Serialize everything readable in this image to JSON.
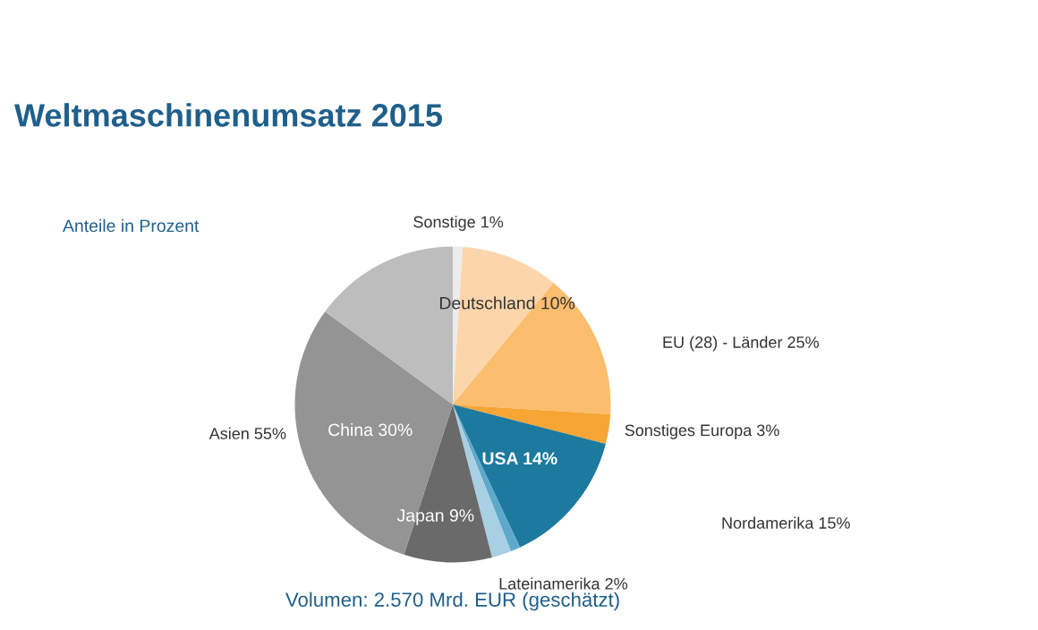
{
  "chart_data": {
    "type": "pie",
    "title": "Weltmaschinenumsatz 2015",
    "categories": [
      "Sonstige",
      "Deutschland",
      null,
      "Sonstiges Europa",
      "USA",
      null,
      "Lateinamerika",
      "Japan",
      "China",
      null
    ],
    "values": [
      1,
      10,
      15,
      3,
      14,
      1,
      2,
      9,
      30,
      15
    ],
    "value_labels": [
      "1%",
      "10%",
      null,
      "3%",
      "14%",
      null,
      "2%",
      "9%",
      "30%",
      null
    ],
    "colors": [
      "#ececec",
      "#fdd5ab",
      "#fbbe6f",
      "#f7a535",
      "#1c7a9e",
      "#5ea9cb",
      "#a8cfe2",
      "#6a6a6a",
      "#949494",
      "#bdbdbd"
    ],
    "annotations": [
      "Anteile in Prozent",
      "EU (28) - Länder 25%",
      "Nordamerika 15%",
      "Asien 55%",
      "Volumen: 2.570 Mrd. EUR (geschätzt)"
    ]
  }
}
